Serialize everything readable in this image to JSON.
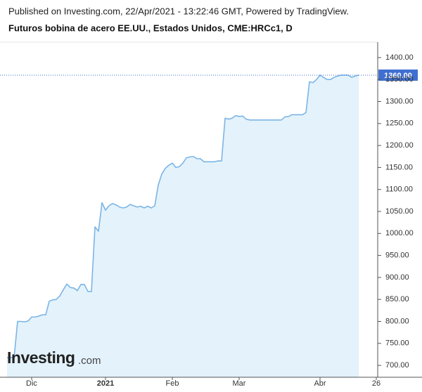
{
  "chart_data": {
    "type": "area",
    "subtitle": "Published on Investing.com, 22/Apr/2021 - 13:22:46 GMT, Powered by TradingView.",
    "title": "Futuros bobina de acero EE.UU., Estados Unidos, CME:HRCc1, D",
    "logo": {
      "brand": "Investing",
      "suffix": ".com"
    },
    "categories": [
      null,
      null,
      null,
      null,
      null,
      null,
      null,
      "Dic",
      null,
      null,
      null,
      null,
      null,
      null,
      null,
      null,
      null,
      null,
      null,
      null,
      null,
      null,
      null,
      null,
      null,
      null,
      null,
      null,
      "2021",
      null,
      null,
      null,
      null,
      null,
      null,
      null,
      null,
      null,
      null,
      null,
      null,
      null,
      null,
      null,
      null,
      null,
      null,
      "Feb",
      null,
      null,
      null,
      null,
      null,
      null,
      null,
      null,
      null,
      null,
      null,
      null,
      null,
      null,
      null,
      null,
      null,
      null,
      "Mar",
      null,
      null,
      null,
      null,
      null,
      null,
      null,
      null,
      null,
      null,
      null,
      null,
      null,
      null,
      null,
      null,
      null,
      null,
      null,
      null,
      null,
      null,
      "Abr",
      null,
      null,
      null,
      null,
      null,
      null,
      null,
      null,
      null,
      null,
      null,
      null,
      null,
      null,
      null,
      "26"
    ],
    "series": [
      {
        "color": "#7cb5e6",
        "fill": "#e3f2fb",
        "values": [
          718,
          718,
          718,
          800,
          800,
          799,
          801,
          810,
          810,
          812,
          815,
          815,
          846,
          849,
          850,
          858,
          872,
          885,
          877,
          876,
          870,
          884,
          884,
          868,
          868,
          1015,
          1005,
          1070,
          1053,
          1063,
          1068,
          1065,
          1060,
          1058,
          1060,
          1066,
          1063,
          1060,
          1062,
          1058,
          1062,
          1058,
          1063,
          1110,
          1135,
          1148,
          1155,
          1160,
          1150,
          1152,
          1160,
          1172,
          1174,
          1175,
          1170,
          1170,
          1163,
          1163,
          1163,
          1163,
          1165,
          1165,
          1262,
          1260,
          1262,
          1268,
          1266,
          1267,
          1260,
          1258,
          1258,
          1258,
          1258,
          1258,
          1258,
          1258,
          1258,
          1258,
          1258,
          1265,
          1266,
          1270,
          1270,
          1270,
          1270,
          1275,
          1345,
          1343,
          1350,
          1360,
          1355,
          1350,
          1350,
          1355,
          1358,
          1360,
          1360,
          1360,
          1355,
          1358,
          1360,
          null,
          null,
          null,
          null,
          null
        ]
      }
    ],
    "last_price": {
      "value": 1360,
      "label": "1360.00",
      "color": "#3f6fd1"
    },
    "ylim": [
      673,
      1435
    ],
    "yticks": [
      {
        "value": 700,
        "label": "700.00"
      },
      {
        "value": 750,
        "label": "750.00"
      },
      {
        "value": 800,
        "label": "800.00"
      },
      {
        "value": 850,
        "label": "850.00"
      },
      {
        "value": 900,
        "label": "900.00"
      },
      {
        "value": 950,
        "label": "950.00"
      },
      {
        "value": 1000,
        "label": "1000.00"
      },
      {
        "value": 1050,
        "label": "1050.00"
      },
      {
        "value": 1100,
        "label": "1100.00"
      },
      {
        "value": 1150,
        "label": "1150.00"
      },
      {
        "value": 1200,
        "label": "1200.00"
      },
      {
        "value": 1250,
        "label": "1250.00"
      },
      {
        "value": 1300,
        "label": "1300.00"
      },
      {
        "value": 1350,
        "label": "1350.00"
      },
      {
        "value": 1400,
        "label": "1400.00"
      }
    ]
  }
}
